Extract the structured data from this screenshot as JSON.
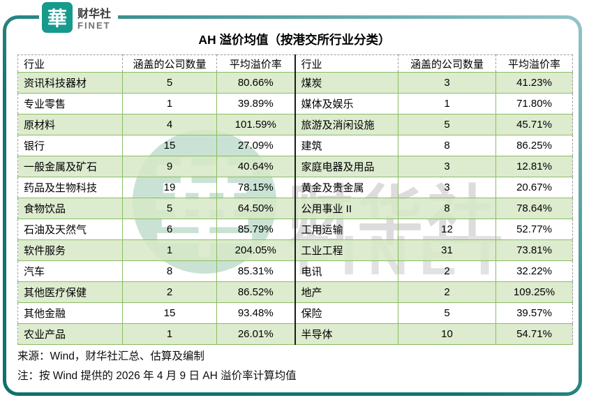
{
  "logo": {
    "mark": "華",
    "name_cn": "财华社",
    "name_en": "FINET"
  },
  "title": "AH 溢价均值（按港交所行业分类）",
  "watermark": {
    "emblem": "華",
    "text_cn": "财华社",
    "text_en": "FINET"
  },
  "footer": {
    "source": "来源：Wind，财华社汇总、估算及编制",
    "note": "注：按 Wind 提供的 2026 年 4 月 9 日 AH 溢价率计算均值"
  },
  "colors": {
    "frame_teal_dark": "#0d716e",
    "frame_teal_light": "#93c4c8",
    "logo_teal": "#169a8c",
    "row_green": "#d7e7c7",
    "grid_green": "#8abc65",
    "outer_dashed_gray": "#9b9b9b",
    "divider_black": "#1b1b1b"
  },
  "chart_data": {
    "type": "table",
    "title": "AH 溢价均值（按港交所行业分类）",
    "columns": [
      "行业",
      "涵盖的公司数量",
      "平均溢价率"
    ],
    "left_rows": [
      {
        "industry": "资讯科技器材",
        "companies": "5",
        "premium": "80.66%"
      },
      {
        "industry": "专业零售",
        "companies": "1",
        "premium": "39.89%"
      },
      {
        "industry": "原材料",
        "companies": "4",
        "premium": "101.59%"
      },
      {
        "industry": "银行",
        "companies": "15",
        "premium": "27.09%"
      },
      {
        "industry": "一般金属及矿石",
        "companies": "9",
        "premium": "40.64%"
      },
      {
        "industry": "药品及生物科技",
        "companies": "19",
        "premium": "78.15%"
      },
      {
        "industry": "食物饮品",
        "companies": "5",
        "premium": "64.50%"
      },
      {
        "industry": "石油及天然气",
        "companies": "6",
        "premium": "85.79%"
      },
      {
        "industry": "软件服务",
        "companies": "1",
        "premium": "204.05%"
      },
      {
        "industry": "汽车",
        "companies": "8",
        "premium": "85.31%"
      },
      {
        "industry": "其他医疗保健",
        "companies": "2",
        "premium": "86.52%"
      },
      {
        "industry": "其他金融",
        "companies": "15",
        "premium": "93.48%"
      },
      {
        "industry": "农业产品",
        "companies": "1",
        "premium": "26.01%"
      }
    ],
    "right_rows": [
      {
        "industry": "煤炭",
        "companies": "3",
        "premium": "41.23%"
      },
      {
        "industry": "媒体及娱乐",
        "companies": "1",
        "premium": "71.80%"
      },
      {
        "industry": "旅游及消闲设施",
        "companies": "5",
        "premium": "45.71%"
      },
      {
        "industry": "建筑",
        "companies": "8",
        "premium": "86.25%"
      },
      {
        "industry": "家庭电器及用品",
        "companies": "3",
        "premium": "12.81%"
      },
      {
        "industry": "黄金及贵金属",
        "companies": "3",
        "premium": "20.67%"
      },
      {
        "industry": "公用事业 II",
        "companies": "8",
        "premium": "78.64%"
      },
      {
        "industry": "工用运输",
        "companies": "12",
        "premium": "52.77%"
      },
      {
        "industry": "工业工程",
        "companies": "31",
        "premium": "73.81%"
      },
      {
        "industry": "电讯",
        "companies": "2",
        "premium": "32.22%"
      },
      {
        "industry": "地产",
        "companies": "2",
        "premium": "109.25%"
      },
      {
        "industry": "保险",
        "companies": "5",
        "premium": "39.57%"
      },
      {
        "industry": "半导体",
        "companies": "10",
        "premium": "54.71%"
      }
    ]
  }
}
